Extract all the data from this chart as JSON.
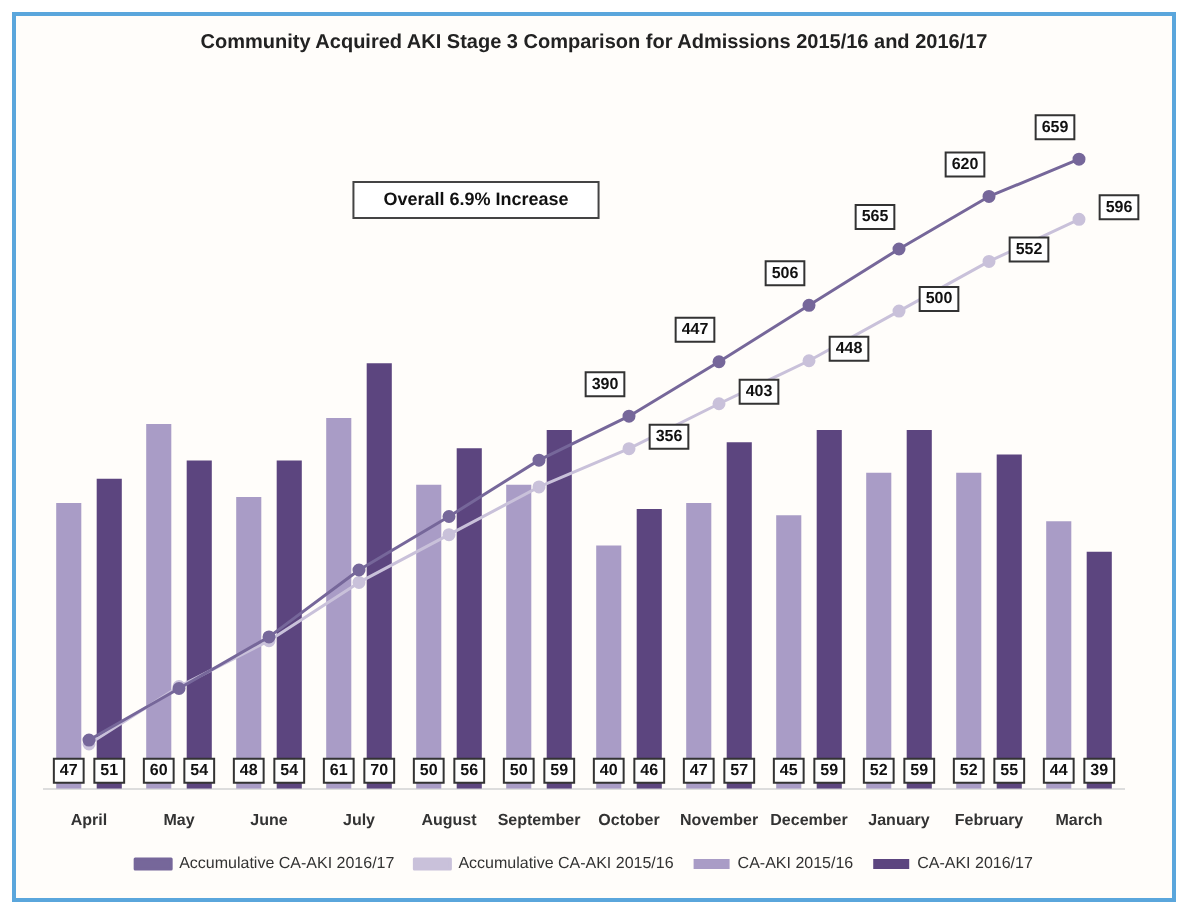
{
  "chart_data": {
    "type": "bar",
    "title": "Community Acquired AKI Stage 3 Comparison for Admissions 2015/16 and 2016/17",
    "categories": [
      "April",
      "May",
      "June",
      "July",
      "August",
      "September",
      "October",
      "November",
      "December",
      "January",
      "February",
      "March"
    ],
    "series": [
      {
        "name": "CA-AKI 2015/16",
        "color": "#a99cc6",
        "values": [
          47,
          60,
          48,
          61,
          50,
          50,
          40,
          47,
          45,
          52,
          52,
          44
        ],
        "value_labels": [
          "47",
          "60",
          "48",
          "61",
          "50",
          "50",
          "40",
          "47",
          "45",
          "52",
          "52",
          "44"
        ]
      },
      {
        "name": "CA-AKI 2016/17",
        "color": "#5c457f",
        "values": [
          51,
          54,
          54,
          70,
          56,
          59,
          46,
          57,
          59,
          59,
          55,
          39
        ],
        "value_labels": [
          "51",
          "54",
          "54",
          "70",
          "56",
          "59",
          "46",
          "57",
          "59",
          "59",
          "55",
          "39"
        ]
      },
      {
        "name": "Accumulative CA-AKI 2015/16",
        "type": "line",
        "axis": "y2",
        "color": "#c9c1da",
        "values": [
          47,
          107,
          155,
          216,
          266,
          316,
          356,
          403,
          448,
          500,
          552,
          596
        ],
        "value_labels": [
          null,
          null,
          null,
          null,
          null,
          null,
          "356",
          "403",
          "448",
          "500",
          "552",
          "596"
        ]
      },
      {
        "name": "Accumulative CA-AKI 2016/17",
        "type": "line",
        "axis": "y2",
        "color": "#76679a",
        "values": [
          51,
          105,
          159,
          229,
          285,
          344,
          390,
          447,
          506,
          565,
          620,
          659
        ],
        "value_labels": [
          null,
          null,
          null,
          null,
          null,
          null,
          "390",
          "447",
          "506",
          "565",
          "620",
          "659"
        ]
      }
    ],
    "ylim": [
      0,
      110
    ],
    "y2lim": [
      0,
      700
    ],
    "tick_labels": "x",
    "grid": false,
    "legend": "bottom",
    "marker": "circle",
    "line_style": "solid",
    "annotations": [
      "Overall 6.9% Increase"
    ]
  }
}
